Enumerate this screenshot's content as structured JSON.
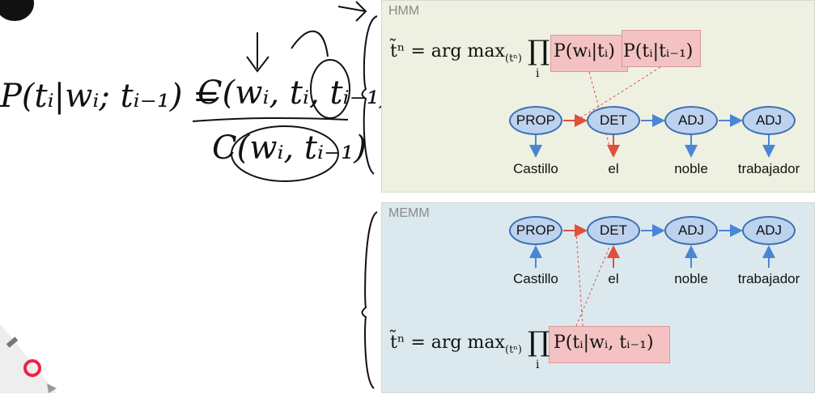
{
  "hmm": {
    "title": "HMM",
    "formula_lhs": "t̃ⁿ = arg max",
    "formula_sub": "(tⁿ)",
    "prod": "∏",
    "prod_index": "i",
    "term1": "P(wᵢ|tᵢ)",
    "term2": "P(tᵢ|tᵢ₋₁)",
    "tags": [
      "PROP",
      "DET",
      "ADJ",
      "ADJ"
    ],
    "words": [
      "Castillo",
      "el",
      "noble",
      "trabajador"
    ]
  },
  "memm": {
    "title": "MEMM",
    "formula_lhs": "t̃ⁿ = arg max",
    "formula_sub": "(tⁿ)",
    "prod": "∏",
    "prod_index": "i",
    "term1": "P(tᵢ|wᵢ, tᵢ₋₁)",
    "tags": [
      "PROP",
      "DET",
      "ADJ",
      "ADJ"
    ],
    "words": [
      "Castillo",
      "el",
      "noble",
      "trabajador"
    ]
  },
  "handwriting": {
    "lhs": "P(tᵢ|wᵢ; tᵢ₋₁) =",
    "numerator": "C(wᵢ, tᵢ, tᵢ₋₁)",
    "denominator": "C(wᵢ, tᵢ₋₁)"
  },
  "colors": {
    "transition_arrow": "#e0503a",
    "emission_arrow": "#4a86d4",
    "node_fill": "#bcd2ee",
    "highlight": "#f4c2c2"
  }
}
